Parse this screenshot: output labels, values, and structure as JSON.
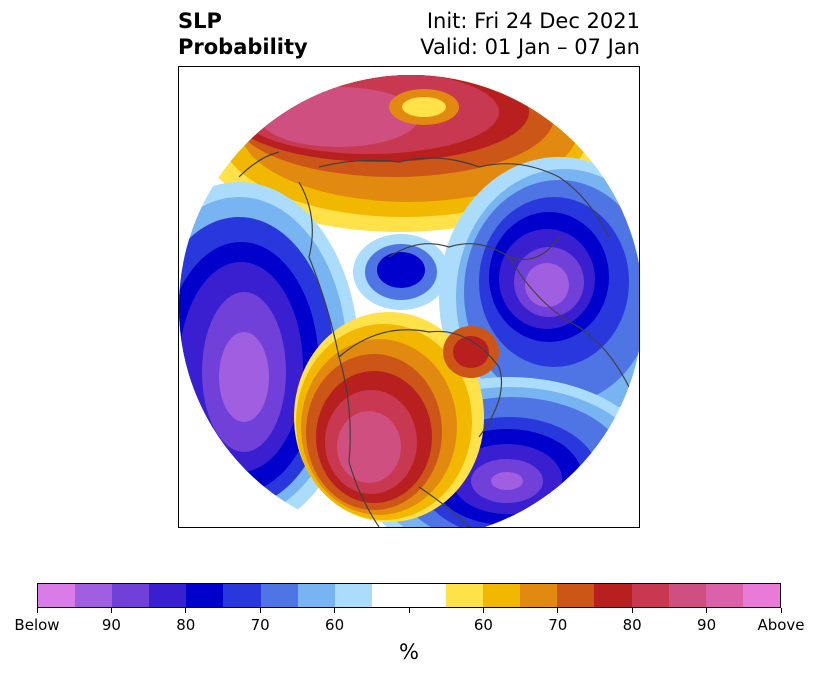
{
  "title": {
    "left_line1": "SLP",
    "left_line2": "Probability",
    "right_line1": "Init: Fri 24 Dec 2021",
    "right_line2": "Valid: 01 Jan – 07 Jan"
  },
  "colorbar": {
    "units": "%",
    "colors": [
      "#d97ce8",
      "#a05ee0",
      "#7040d8",
      "#3a1fd0",
      "#0000cc",
      "#2838dc",
      "#4f74e4",
      "#78b4f2",
      "#acdcfb",
      "#ffffff",
      "#ffffff",
      "#ffe14a",
      "#f2b800",
      "#e28a10",
      "#cc5518",
      "#b82020",
      "#c83850",
      "#cf4f80",
      "#db62a8",
      "#e97ad8"
    ],
    "tick_labels": [
      "Below",
      "90",
      "80",
      "70",
      "60",
      "",
      "60",
      "70",
      "80",
      "90",
      "Above"
    ]
  },
  "map": {
    "projection": "polar",
    "below_color": "#3a1fd0",
    "above_color": "#b82020"
  }
}
